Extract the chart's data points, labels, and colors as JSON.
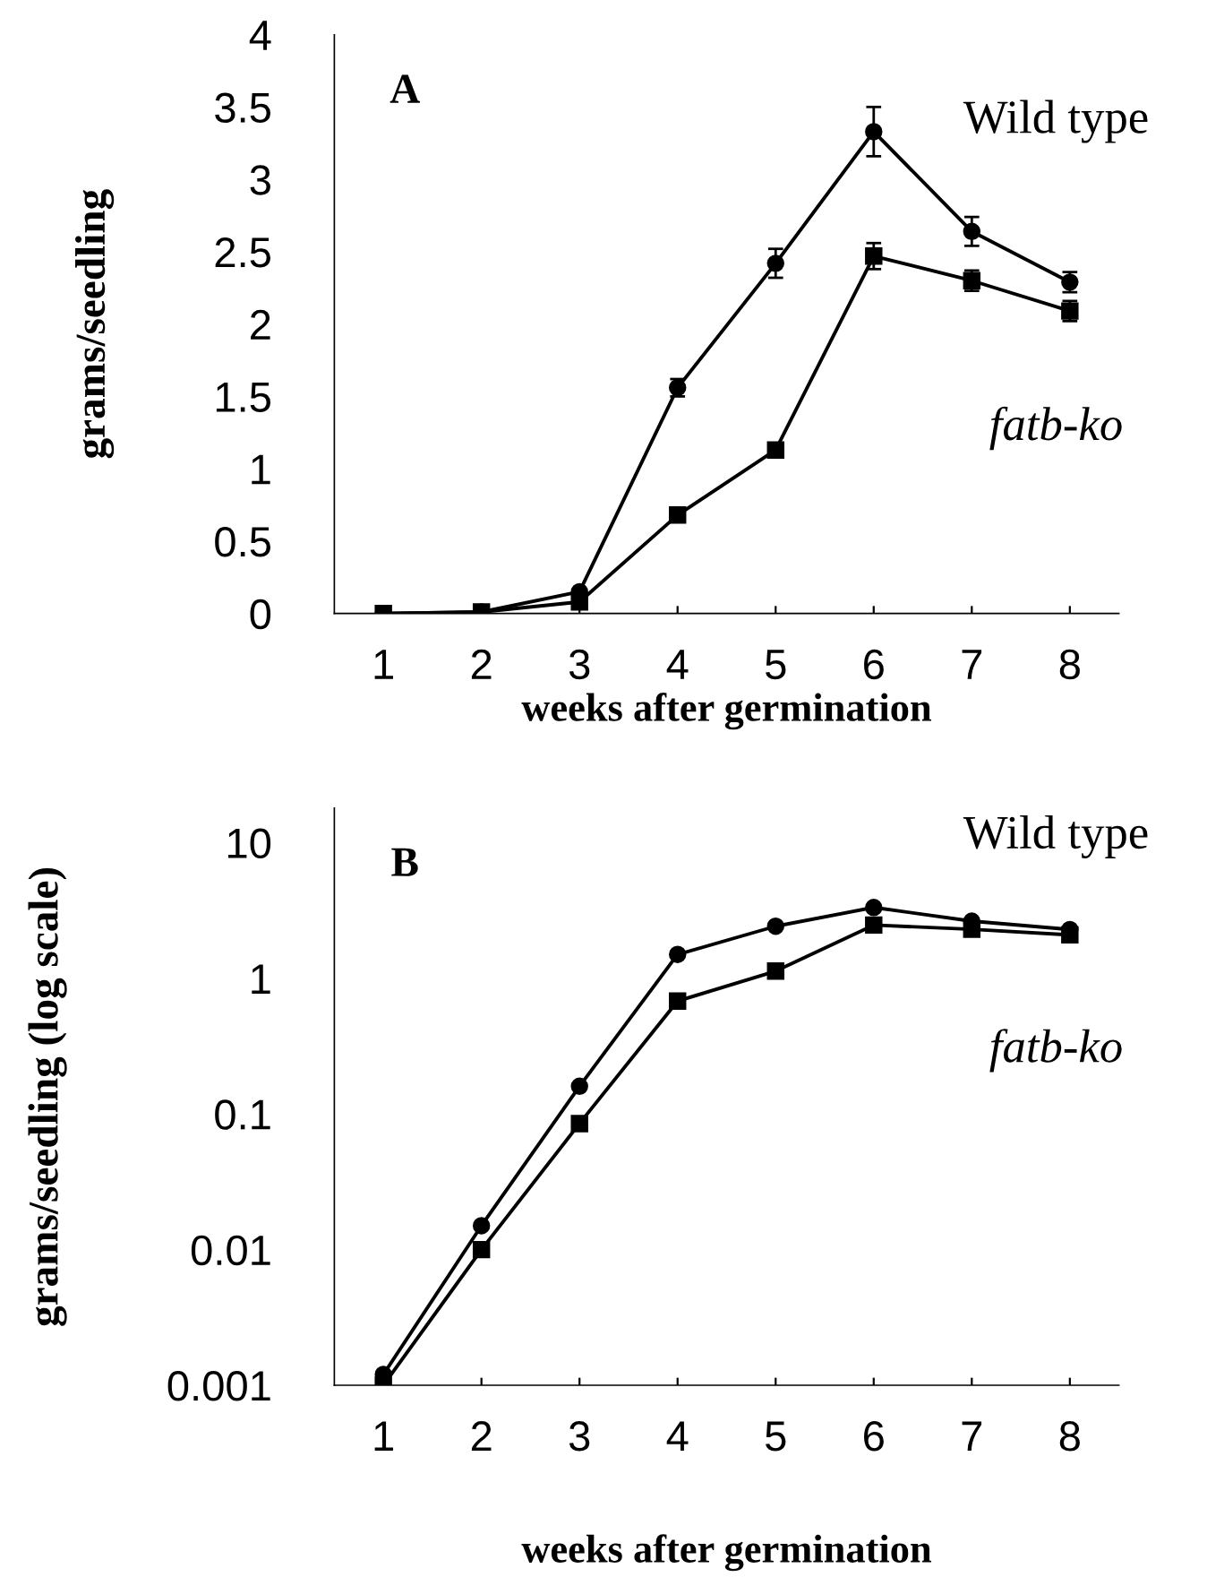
{
  "chart_data": [
    {
      "type": "line",
      "title": "A",
      "xlabel": "weeks after germination",
      "ylabel": "grams/seedling",
      "x": [
        1,
        2,
        3,
        4,
        5,
        6,
        7,
        8
      ],
      "xlim": [
        0.5,
        8.5
      ],
      "xticks": [
        1,
        2,
        3,
        4,
        5,
        6,
        7,
        8
      ],
      "ylim": [
        0,
        4
      ],
      "yticks": [
        0,
        0.5,
        1,
        1.5,
        2,
        2.5,
        3,
        3.5,
        4
      ],
      "grid": false,
      "legend": false,
      "line_style": "solid",
      "series": [
        {
          "name": "Wild type",
          "color": "#000000",
          "marker": "circle",
          "values": [
            0,
            0.01,
            0.15,
            1.56,
            2.42,
            3.33,
            2.64,
            2.29
          ],
          "errors": [
            null,
            null,
            null,
            0.06,
            0.1,
            0.17,
            0.1,
            0.07
          ]
        },
        {
          "name": "fatb-ko",
          "color": "#000000",
          "marker": "square",
          "values": [
            0,
            0.01,
            0.08,
            0.68,
            1.13,
            2.47,
            2.3,
            2.09
          ],
          "errors": [
            null,
            null,
            null,
            null,
            null,
            0.09,
            0.07,
            0.07
          ]
        }
      ]
    },
    {
      "type": "line",
      "title": "B",
      "xlabel": "weeks after germination",
      "ylabel": "grams/seedling (log scale)",
      "x": [
        1,
        2,
        3,
        4,
        5,
        6,
        7,
        8
      ],
      "xlim": [
        0.5,
        8.5
      ],
      "xticks": [
        1,
        2,
        3,
        4,
        5,
        6,
        7,
        8
      ],
      "log": "y",
      "ylim": [
        0.001,
        18
      ],
      "yticks": [
        0.001,
        0.01,
        0.1,
        1,
        10
      ],
      "grid": false,
      "legend": false,
      "line_style": "solid",
      "series": [
        {
          "name": "Wild type",
          "color": "#000000",
          "marker": "circle",
          "values": [
            0.0012,
            0.015,
            0.16,
            1.5,
            2.42,
            3.33,
            2.64,
            2.29
          ]
        },
        {
          "name": "fatb-ko",
          "color": "#000000",
          "marker": "square",
          "values": [
            0.001,
            0.01,
            0.085,
            0.68,
            1.13,
            2.47,
            2.3,
            2.09
          ]
        }
      ]
    }
  ]
}
